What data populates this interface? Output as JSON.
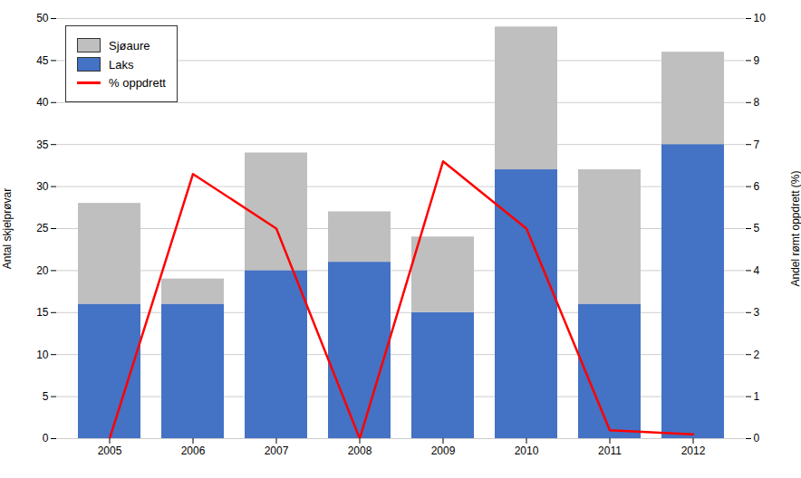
{
  "chart_data": {
    "type": "bar",
    "stacked": true,
    "categories": [
      "2005",
      "2006",
      "2007",
      "2008",
      "2009",
      "2010",
      "2011",
      "2012"
    ],
    "series": [
      {
        "name": "Laks",
        "color": "#4472C4",
        "values": [
          16,
          16,
          20,
          21,
          15,
          32,
          16,
          35
        ]
      },
      {
        "name": "Sjøaure",
        "color": "#BFBFBF",
        "values": [
          12,
          3,
          14,
          6,
          9,
          17,
          16,
          11
        ]
      },
      {
        "name": "% oppdrett",
        "type": "line",
        "axis": "y2",
        "color": "#FF0000",
        "values": [
          0.0,
          6.3,
          5.0,
          0.0,
          6.6,
          5.0,
          0.2,
          0.1
        ]
      }
    ],
    "ylabel": "Antal skjelprøvar",
    "y2label": "Andel rømt oppdrett (%)",
    "ylim": [
      0,
      50
    ],
    "yticks": [
      0,
      5,
      10,
      15,
      20,
      25,
      30,
      35,
      40,
      45,
      50
    ],
    "y2lim": [
      0,
      10
    ],
    "y2ticks": [
      0,
      1,
      2,
      3,
      4,
      5,
      6,
      7,
      8,
      9,
      10
    ],
    "grid": true,
    "legend": "upper left"
  }
}
